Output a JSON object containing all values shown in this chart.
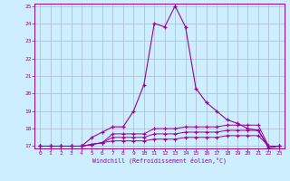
{
  "xlabel": "Windchill (Refroidissement éolien,°C)",
  "bg_color": "#cceeff",
  "line_color": "#990099",
  "grid_color": "#aabbcc",
  "hours": [
    0,
    1,
    2,
    3,
    4,
    5,
    6,
    7,
    8,
    9,
    10,
    11,
    12,
    13,
    14,
    15,
    16,
    17,
    18,
    19,
    20,
    21,
    22,
    23
  ],
  "temp_main": [
    17.0,
    17.0,
    17.0,
    17.0,
    17.0,
    17.5,
    17.8,
    18.1,
    18.1,
    19.0,
    20.5,
    24.0,
    23.8,
    25.0,
    23.8,
    20.3,
    19.5,
    19.0,
    18.5,
    18.3,
    18.0,
    17.9,
    16.9,
    17.0
  ],
  "temp_line2": [
    17.0,
    17.0,
    17.0,
    17.0,
    17.0,
    17.1,
    17.2,
    17.3,
    17.3,
    17.3,
    17.3,
    17.4,
    17.4,
    17.4,
    17.5,
    17.5,
    17.5,
    17.5,
    17.6,
    17.6,
    17.6,
    17.6,
    17.0,
    17.0
  ],
  "temp_line3": [
    17.0,
    17.0,
    17.0,
    17.0,
    17.0,
    17.1,
    17.2,
    17.5,
    17.5,
    17.5,
    17.5,
    17.7,
    17.7,
    17.7,
    17.8,
    17.8,
    17.8,
    17.8,
    17.9,
    17.9,
    17.9,
    17.9,
    17.0,
    17.0
  ],
  "temp_line4": [
    17.0,
    17.0,
    17.0,
    17.0,
    17.0,
    17.1,
    17.2,
    17.7,
    17.7,
    17.7,
    17.7,
    18.0,
    18.0,
    18.0,
    18.1,
    18.1,
    18.1,
    18.1,
    18.2,
    18.2,
    18.2,
    18.2,
    17.0,
    17.0
  ],
  "ylim": [
    17,
    25
  ],
  "xlim": [
    0,
    23
  ],
  "yticks": [
    17,
    18,
    19,
    20,
    21,
    22,
    23,
    24,
    25
  ],
  "xticks": [
    0,
    1,
    2,
    3,
    4,
    5,
    6,
    7,
    8,
    9,
    10,
    11,
    12,
    13,
    14,
    15,
    16,
    17,
    18,
    19,
    20,
    21,
    22,
    23
  ]
}
